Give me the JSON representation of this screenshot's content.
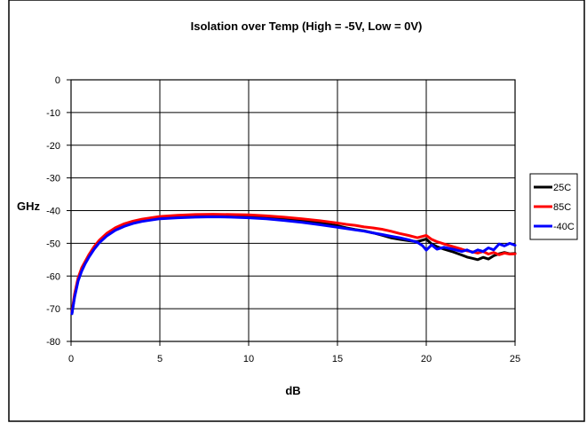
{
  "chart_data": {
    "type": "line",
    "title": "Isolation over Temp (High = -5V, Low = 0V)",
    "xlabel": "dB",
    "ylabel": "GHz",
    "xlim": [
      0,
      25
    ],
    "ylim": [
      -80,
      0
    ],
    "xticks": [
      0,
      5,
      10,
      15,
      20,
      25
    ],
    "yticks": [
      0,
      -10,
      -20,
      -30,
      -40,
      -50,
      -60,
      -70,
      -80
    ],
    "grid": true,
    "legend_position": "right",
    "series": [
      {
        "name": "25C",
        "color": "#000000",
        "x": [
          0.05,
          0.2,
          0.4,
          0.6,
          0.8,
          1.0,
          1.3,
          1.6,
          2.0,
          2.5,
          3.0,
          3.5,
          4.0,
          5.0,
          6.0,
          7.0,
          8.0,
          9.0,
          10.0,
          11.0,
          12.0,
          13.0,
          14.0,
          15.0,
          15.5,
          16.0,
          16.5,
          17.0,
          17.5,
          18.0,
          18.5,
          19.0,
          19.5,
          20.0,
          20.3,
          20.6,
          21.0,
          21.5,
          22.0,
          22.3,
          22.6,
          22.9,
          23.2,
          23.5,
          23.8,
          24.1,
          24.4,
          24.7,
          25.0
        ],
        "y": [
          -71.5,
          -66,
          -61,
          -58,
          -56,
          -54,
          -51.5,
          -49.5,
          -47.5,
          -45.8,
          -44.5,
          -43.6,
          -43,
          -42.2,
          -41.9,
          -41.6,
          -41.5,
          -41.6,
          -41.7,
          -42,
          -42.5,
          -43.1,
          -43.8,
          -44.6,
          -45.3,
          -45.8,
          -46.2,
          -46.8,
          -47.5,
          -48.3,
          -48.8,
          -49.2,
          -49.5,
          -48.7,
          -50.2,
          -51,
          -51.8,
          -52.6,
          -53.6,
          -54.2,
          -54.6,
          -55,
          -54.3,
          -54.8,
          -53.8,
          -53.2,
          -52.8,
          -53.2,
          -53.1
        ]
      },
      {
        "name": "85C",
        "color": "#ff0000",
        "x": [
          0.05,
          0.2,
          0.4,
          0.6,
          0.8,
          1.0,
          1.3,
          1.6,
          2.0,
          2.5,
          3.0,
          3.5,
          4.0,
          5.0,
          6.0,
          7.0,
          8.0,
          9.0,
          10.0,
          11.0,
          12.0,
          13.0,
          14.0,
          15.0,
          15.5,
          16.0,
          16.5,
          17.0,
          17.5,
          18.0,
          18.5,
          19.0,
          19.5,
          20.0,
          20.3,
          20.6,
          21.0,
          21.5,
          22.0,
          22.3,
          22.6,
          22.9,
          23.2,
          23.5,
          23.8,
          24.1,
          24.4,
          24.7,
          25.0
        ],
        "y": [
          -71,
          -65.5,
          -60.5,
          -57.5,
          -55.5,
          -53.5,
          -51,
          -49,
          -47,
          -45.2,
          -44,
          -43.2,
          -42.6,
          -41.8,
          -41.4,
          -41.2,
          -41.1,
          -41.2,
          -41.3,
          -41.6,
          -42,
          -42.5,
          -43.1,
          -43.8,
          -44.2,
          -44.5,
          -45,
          -45.3,
          -45.7,
          -46.3,
          -47,
          -47.6,
          -48.3,
          -47.6,
          -48.8,
          -49.5,
          -50.2,
          -51,
          -51.8,
          -52.3,
          -52.6,
          -53,
          -52.5,
          -53.3,
          -52.8,
          -53.5,
          -53,
          -53.3,
          -53.2
        ]
      },
      {
        "name": "-40C",
        "color": "#0000ff",
        "x": [
          0.05,
          0.2,
          0.4,
          0.6,
          0.8,
          1.0,
          1.3,
          1.6,
          2.0,
          2.5,
          3.0,
          3.5,
          4.0,
          5.0,
          6.0,
          7.0,
          8.0,
          9.0,
          10.0,
          11.0,
          12.0,
          13.0,
          14.0,
          15.0,
          15.5,
          16.0,
          16.5,
          17.0,
          17.5,
          18.0,
          18.5,
          19.0,
          19.5,
          19.8,
          20.0,
          20.3,
          20.6,
          21.0,
          21.5,
          22.0,
          22.3,
          22.6,
          22.9,
          23.2,
          23.5,
          23.8,
          24.1,
          24.4,
          24.7,
          25.0
        ],
        "y": [
          -71.5,
          -66.5,
          -61.5,
          -58.5,
          -56.2,
          -54.3,
          -51.8,
          -49.8,
          -47.8,
          -46,
          -44.8,
          -43.9,
          -43.3,
          -42.5,
          -42.2,
          -42,
          -41.9,
          -42,
          -42.2,
          -42.5,
          -43,
          -43.6,
          -44.3,
          -45.1,
          -45.5,
          -45.9,
          -46.3,
          -46.8,
          -47.3,
          -47.8,
          -48.3,
          -48.9,
          -49.7,
          -50.8,
          -52.1,
          -50.5,
          -51.8,
          -51.2,
          -51.8,
          -52.5,
          -52,
          -52.8,
          -52,
          -52.5,
          -51.4,
          -52,
          -50.2,
          -50.8,
          -50,
          -50.6
        ]
      }
    ]
  }
}
